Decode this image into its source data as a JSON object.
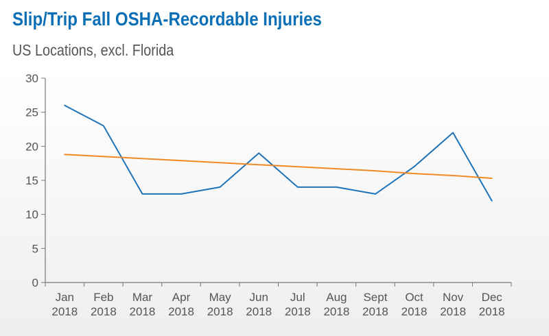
{
  "chart_data": {
    "type": "line",
    "title": "Slip/Trip Fall OSHA-Recordable Injuries",
    "subtitle": "US Locations, excl. Florida",
    "categories": [
      [
        "Jan",
        "2018"
      ],
      [
        "Feb",
        "2018"
      ],
      [
        "Mar",
        "2018"
      ],
      [
        "Apr",
        "2018"
      ],
      [
        "May",
        "2018"
      ],
      [
        "Jun",
        "2018"
      ],
      [
        "Jul",
        "2018"
      ],
      [
        "Aug",
        "2018"
      ],
      [
        "Sept",
        "2018"
      ],
      [
        "Oct",
        "2018"
      ],
      [
        "Nov",
        "2018"
      ],
      [
        "Dec",
        "2018"
      ]
    ],
    "y_ticks": [
      "0",
      "5",
      "10",
      "15",
      "20",
      "25",
      "30"
    ],
    "ylim": [
      0,
      30
    ],
    "series": [
      {
        "role": "injuries",
        "color": "#1f73b7",
        "values": [
          26,
          23,
          13,
          13,
          14,
          19,
          14,
          14,
          13,
          17,
          22,
          12
        ]
      },
      {
        "role": "trend",
        "color": "#f08a24",
        "values": [
          18.8,
          18.5,
          18.2,
          17.9,
          17.6,
          17.3,
          17.0,
          16.7,
          16.4,
          16.0,
          15.7,
          15.3
        ]
      }
    ],
    "grid": false,
    "legend": "none"
  }
}
